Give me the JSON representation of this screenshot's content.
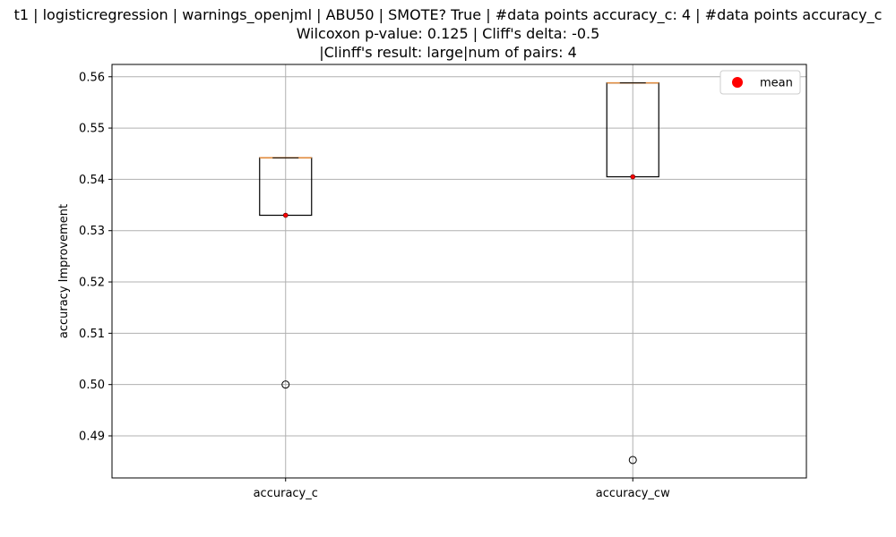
{
  "chart_data": {
    "type": "box",
    "title_lines": [
      "t1 | logisticregression | warnings_openjml | ABU50 | SMOTE? True | #data points accuracy_c: 4 | #data points accuracy_c",
      "Wilcoxon p-value: 0.125 | Cliff's delta: -0.5",
      "|Clinff's result: large|num of pairs: 4"
    ],
    "ylabel": "accuracy Improvement",
    "xlabel": "",
    "ylim": [
      0.4818,
      0.5624
    ],
    "yticks": [
      0.49,
      0.5,
      0.51,
      0.52,
      0.53,
      0.54,
      0.55,
      0.56
    ],
    "ytick_labels": [
      "0.49",
      "0.50",
      "0.51",
      "0.52",
      "0.53",
      "0.54",
      "0.55",
      "0.56"
    ],
    "grid": true,
    "legend": {
      "placement": "top-right",
      "entries": [
        {
          "label": "mean",
          "color": "#ff0000"
        }
      ]
    },
    "categories": [
      "accuracy_c",
      "accuracy_cw"
    ],
    "boxes": [
      {
        "q1": 0.533,
        "median": 0.5442,
        "q3": 0.5442,
        "whisker_low": 0.533,
        "whisker_high": 0.5442,
        "mean": 0.533,
        "outliers": [
          0.5
        ]
      },
      {
        "q1": 0.5405,
        "median": 0.5588,
        "q3": 0.5588,
        "whisker_low": 0.5405,
        "whisker_high": 0.5588,
        "mean": 0.5405,
        "outliers": [
          0.4853
        ]
      }
    ],
    "colors": {
      "box": "#000000",
      "median": "#e08a3c",
      "mean": "#ff0000",
      "grid": "#b0b0b0"
    }
  }
}
